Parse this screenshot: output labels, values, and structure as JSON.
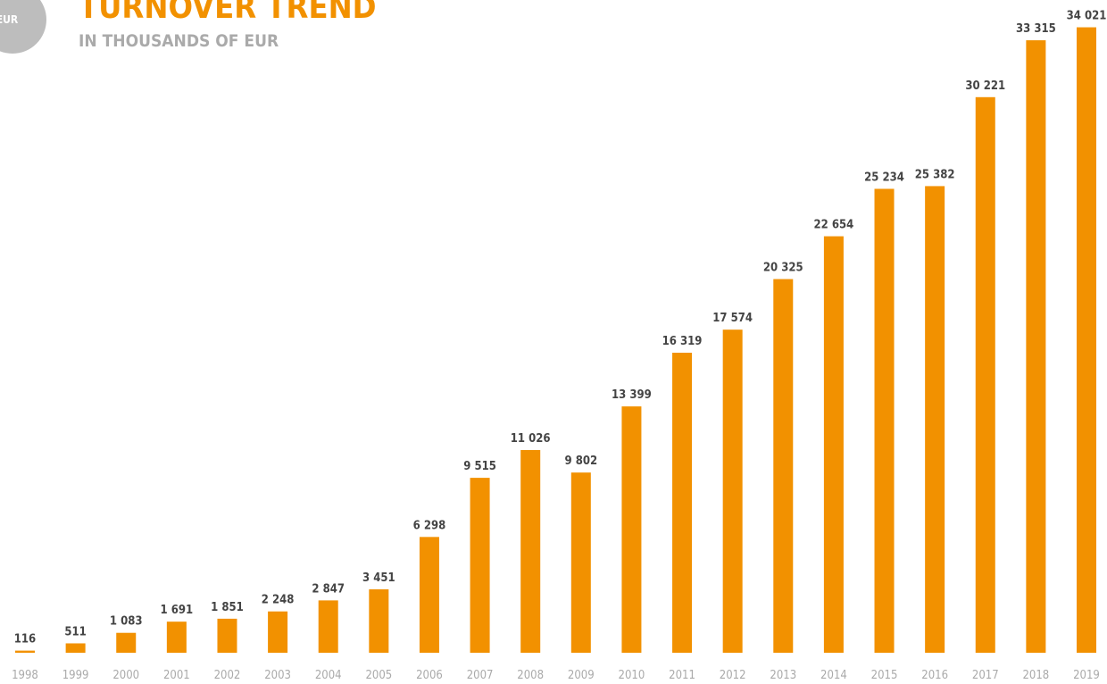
{
  "icon_label": "EUR",
  "chart_data": {
    "type": "bar",
    "title": "TURNOVER TREND",
    "subtitle": "IN THOUSANDS OF EUR",
    "categories": [
      "1998",
      "1999",
      "2000",
      "2001",
      "2002",
      "2003",
      "2004",
      "2005",
      "2006",
      "2007",
      "2008",
      "2009",
      "2010",
      "2011",
      "2012",
      "2013",
      "2014",
      "2015",
      "2016",
      "2017",
      "2018",
      "2019"
    ],
    "values": [
      116,
      511,
      1083,
      1691,
      1851,
      2248,
      2847,
      3451,
      6298,
      9515,
      11026,
      9802,
      13399,
      16319,
      17574,
      20325,
      22654,
      25234,
      25382,
      30221,
      33315,
      34021
    ],
    "value_labels": [
      "116",
      "511",
      "1 083",
      "1 691",
      "1 851",
      "2 248",
      "2 847",
      "3 451",
      "6 298",
      "9 515",
      "11 026",
      "9 802",
      "13 399",
      "16 319",
      "17 574",
      "20 325",
      "22 654",
      "25 234",
      "25 382",
      "30 221",
      "33 315",
      "34 021"
    ],
    "color": "#f29100",
    "ylim": [
      0,
      34000
    ]
  }
}
